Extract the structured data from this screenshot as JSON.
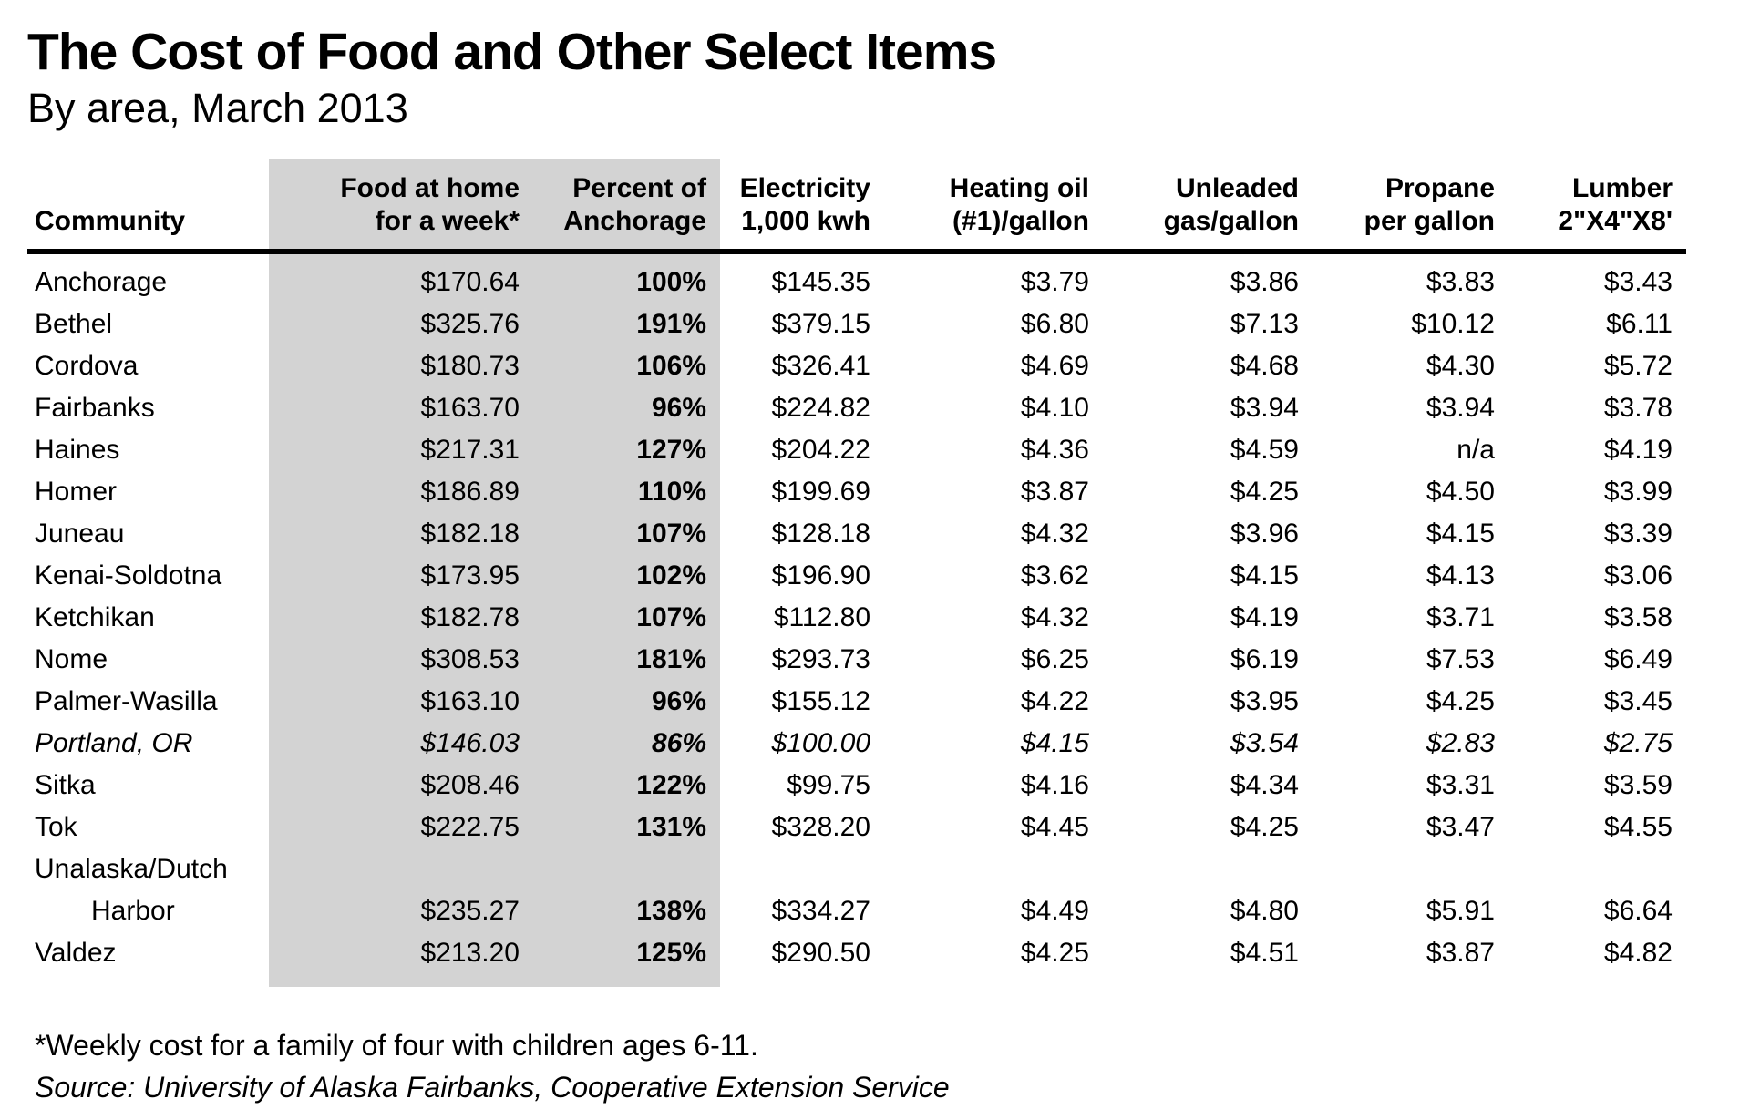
{
  "colors": {
    "highlight": "#d3d3d3",
    "text": "#000000",
    "background": "#ffffff",
    "header_rule": "#000000"
  },
  "chart_data": {
    "type": "table",
    "title": "The Cost of Food and Other Select Items",
    "subtitle": "By area, March 2013",
    "footnote": "*Weekly cost for a family of four with children ages 6-11.",
    "source": "Source: University of Alaska Fairbanks, Cooperative Extension Service",
    "highlighted_columns": [
      "food",
      "percent"
    ],
    "columns": [
      {
        "id": "community",
        "label": "Community",
        "align": "left",
        "shaded": false
      },
      {
        "id": "food",
        "label": "Food at home\nfor a week*",
        "align": "right",
        "shaded": true
      },
      {
        "id": "percent",
        "label": "Percent of\nAnchorage",
        "align": "right",
        "shaded": true
      },
      {
        "id": "electricity",
        "label": "Electricity\n1,000 kwh",
        "align": "right",
        "shaded": false
      },
      {
        "id": "heating_oil",
        "label": "Heating oil\n(#1)/gallon",
        "align": "right",
        "shaded": false
      },
      {
        "id": "unleaded",
        "label": "Unleaded\ngas/gallon",
        "align": "right",
        "shaded": false
      },
      {
        "id": "propane",
        "label": "Propane\nper gallon",
        "align": "right",
        "shaded": false
      },
      {
        "id": "lumber",
        "label": "Lumber\n2\"X4\"X8'",
        "align": "right",
        "shaded": false
      }
    ],
    "rows": [
      {
        "community": "Anchorage",
        "food": "$170.64",
        "percent": "100%",
        "electricity": "$145.35",
        "heating_oil": "$3.79",
        "unleaded": "$3.86",
        "propane": "$3.83",
        "lumber": "$3.43",
        "italic": false
      },
      {
        "community": "Bethel",
        "food": "$325.76",
        "percent": "191%",
        "electricity": "$379.15",
        "heating_oil": "$6.80",
        "unleaded": "$7.13",
        "propane": "$10.12",
        "lumber": "$6.11",
        "italic": false
      },
      {
        "community": "Cordova",
        "food": "$180.73",
        "percent": "106%",
        "electricity": "$326.41",
        "heating_oil": "$4.69",
        "unleaded": "$4.68",
        "propane": "$4.30",
        "lumber": "$5.72",
        "italic": false
      },
      {
        "community": "Fairbanks",
        "food": "$163.70",
        "percent": "96%",
        "electricity": "$224.82",
        "heating_oil": "$4.10",
        "unleaded": "$3.94",
        "propane": "$3.94",
        "lumber": "$3.78",
        "italic": false
      },
      {
        "community": "Haines",
        "food": "$217.31",
        "percent": "127%",
        "electricity": "$204.22",
        "heating_oil": "$4.36",
        "unleaded": "$4.59",
        "propane": "n/a",
        "lumber": "$4.19",
        "italic": false
      },
      {
        "community": "Homer",
        "food": "$186.89",
        "percent": "110%",
        "electricity": "$199.69",
        "heating_oil": "$3.87",
        "unleaded": "$4.25",
        "propane": "$4.50",
        "lumber": "$3.99",
        "italic": false
      },
      {
        "community": "Juneau",
        "food": "$182.18",
        "percent": "107%",
        "electricity": "$128.18",
        "heating_oil": "$4.32",
        "unleaded": "$3.96",
        "propane": "$4.15",
        "lumber": "$3.39",
        "italic": false
      },
      {
        "community": "Kenai-Soldotna",
        "food": "$173.95",
        "percent": "102%",
        "electricity": "$196.90",
        "heating_oil": "$3.62",
        "unleaded": "$4.15",
        "propane": "$4.13",
        "lumber": "$3.06",
        "italic": false
      },
      {
        "community": "Ketchikan",
        "food": "$182.78",
        "percent": "107%",
        "electricity": "$112.80",
        "heating_oil": "$4.32",
        "unleaded": "$4.19",
        "propane": "$3.71",
        "lumber": "$3.58",
        "italic": false
      },
      {
        "community": "Nome",
        "food": "$308.53",
        "percent": "181%",
        "electricity": "$293.73",
        "heating_oil": "$6.25",
        "unleaded": "$6.19",
        "propane": "$7.53",
        "lumber": "$6.49",
        "italic": false
      },
      {
        "community": "Palmer-Wasilla",
        "food": "$163.10",
        "percent": "96%",
        "electricity": "$155.12",
        "heating_oil": "$4.22",
        "unleaded": "$3.95",
        "propane": "$4.25",
        "lumber": "$3.45",
        "italic": false
      },
      {
        "community": "Portland, OR",
        "food": "$146.03",
        "percent": "86%",
        "electricity": "$100.00",
        "heating_oil": "$4.15",
        "unleaded": "$3.54",
        "propane": "$2.83",
        "lumber": "$2.75",
        "italic": true
      },
      {
        "community": "Sitka",
        "food": "$208.46",
        "percent": "122%",
        "electricity": "$99.75",
        "heating_oil": "$4.16",
        "unleaded": "$4.34",
        "propane": "$3.31",
        "lumber": "$3.59",
        "italic": false
      },
      {
        "community": "Tok",
        "food": "$222.75",
        "percent": "131%",
        "electricity": "$328.20",
        "heating_oil": "$4.45",
        "unleaded": "$4.25",
        "propane": "$3.47",
        "lumber": "$4.55",
        "italic": false
      },
      {
        "community": "Unalaska/Dutch\nHarbor",
        "food": "$235.27",
        "percent": "138%",
        "electricity": "$334.27",
        "heating_oil": "$4.49",
        "unleaded": "$4.80",
        "propane": "$5.91",
        "lumber": "$6.64",
        "italic": false
      },
      {
        "community": "Valdez",
        "food": "$213.20",
        "percent": "125%",
        "electricity": "$290.50",
        "heating_oil": "$4.25",
        "unleaded": "$4.51",
        "propane": "$3.87",
        "lumber": "$4.82",
        "italic": false
      }
    ]
  }
}
